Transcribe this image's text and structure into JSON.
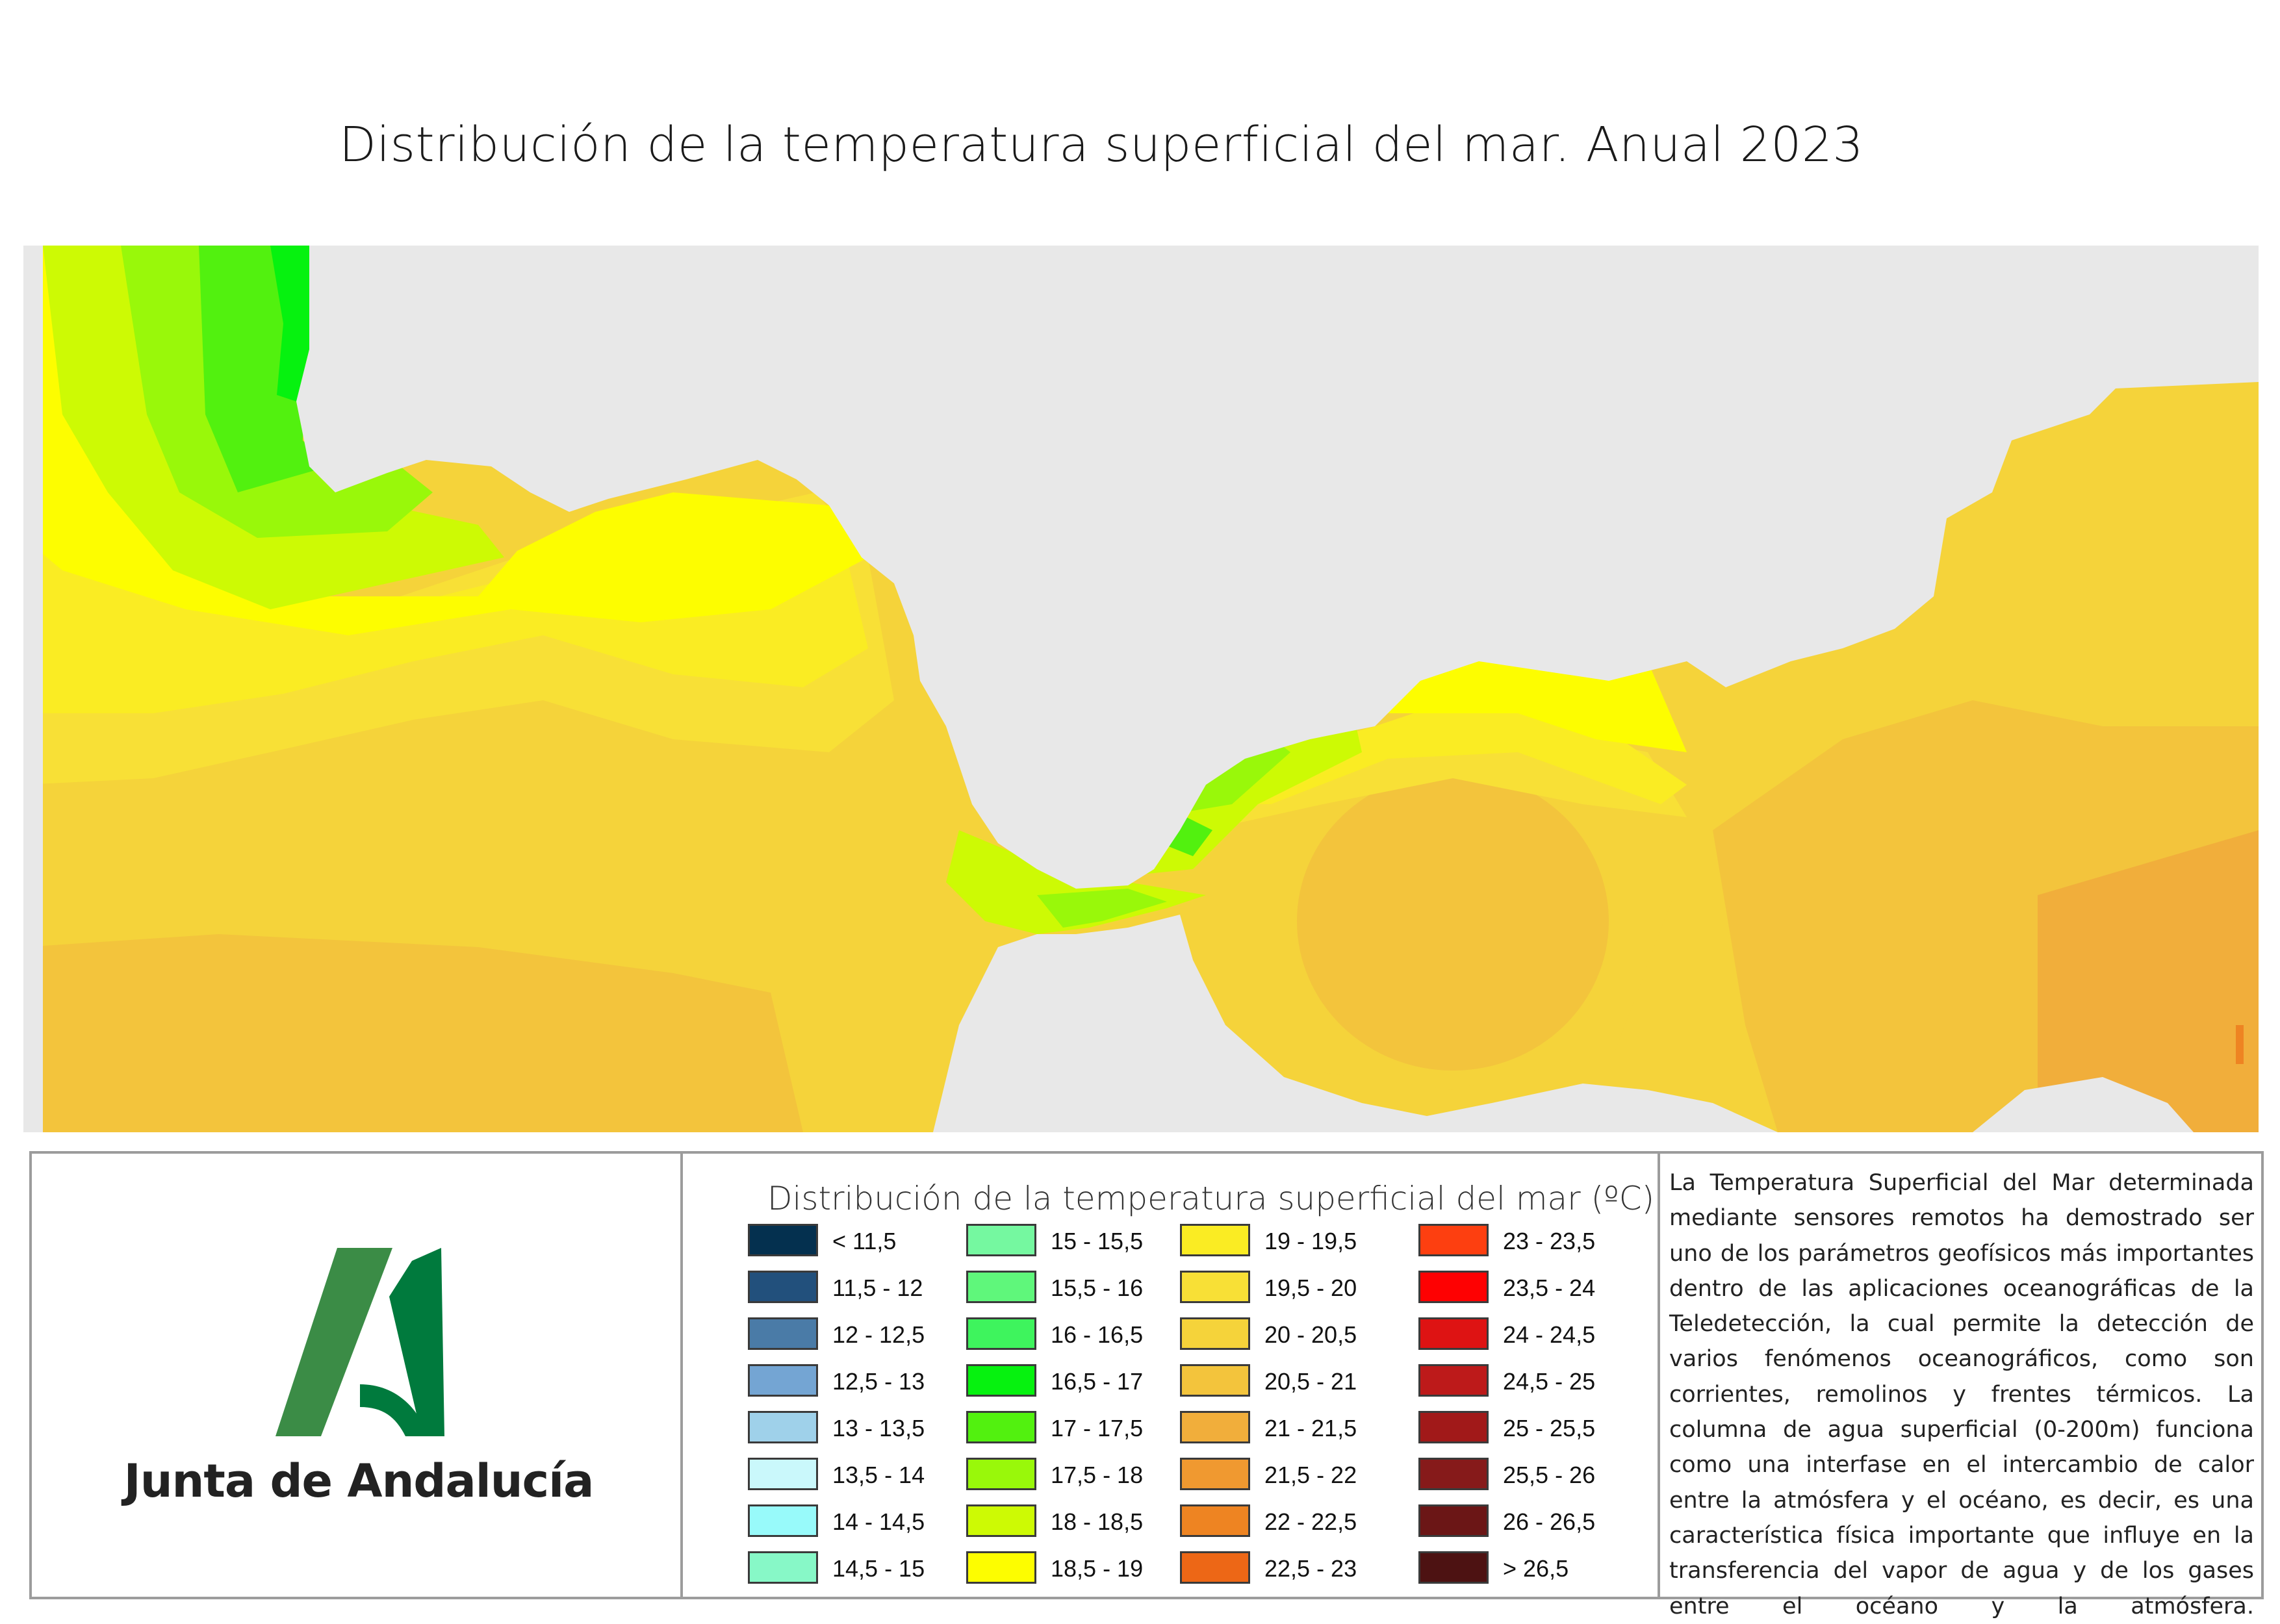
{
  "title": "Distribución de la temperatura superficial del mar. Anual 2023",
  "logo": {
    "text": "Junta de Andalucía",
    "colors": {
      "light_green": "#3b8c46",
      "dark_green": "#007a3d"
    }
  },
  "map": {
    "land_color": "#e8e8e8",
    "icon": "sea-temperature-map"
  },
  "legend": {
    "title": "Distribución de la temperatura superficial del mar (ºC)",
    "items": [
      {
        "label": "< 11,5",
        "color": "#04304f"
      },
      {
        "label": "11,5 - 12",
        "color": "#22507c"
      },
      {
        "label": "12 - 12,5",
        "color": "#4a7ba7"
      },
      {
        "label": "12,5 - 13",
        "color": "#74a5d3"
      },
      {
        "label": "13 - 13,5",
        "color": "#9fd1ea"
      },
      {
        "label": "13,5 - 14",
        "color": "#caf8fb"
      },
      {
        "label": "14 - 14,5",
        "color": "#98fafa"
      },
      {
        "label": "14,5 - 15",
        "color": "#87f8c7"
      },
      {
        "label": "15 - 15,5",
        "color": "#75f8a0"
      },
      {
        "label": "15,5 - 16",
        "color": "#5ff77b"
      },
      {
        "label": "16 - 16,5",
        "color": "#3ef45d"
      },
      {
        "label": "16,5 - 17",
        "color": "#06f20f"
      },
      {
        "label": "17 - 17,5",
        "color": "#52f10f"
      },
      {
        "label": "17,5 - 18",
        "color": "#99f80a"
      },
      {
        "label": "18 - 18,5",
        "color": "#cdfa04"
      },
      {
        "label": "18,5 - 19",
        "color": "#fdfd00"
      },
      {
        "label": "19 - 19,5",
        "color": "#faec23"
      },
      {
        "label": "19,5 - 20",
        "color": "#f8e036"
      },
      {
        "label": "20 - 20,5",
        "color": "#f5d33a"
      },
      {
        "label": "20,5 - 21",
        "color": "#f3c43c"
      },
      {
        "label": "21 - 21,5",
        "color": "#f1ae3b"
      },
      {
        "label": "21,5 - 22",
        "color": "#f09930"
      },
      {
        "label": "22 - 22,5",
        "color": "#ee8422"
      },
      {
        "label": "22,5 - 23",
        "color": "#ed6716"
      },
      {
        "label": "23 - 23,5",
        "color": "#fd3f10"
      },
      {
        "label": "23,5 - 24",
        "color": "#fe0102"
      },
      {
        "label": "24 - 24,5",
        "color": "#de1313"
      },
      {
        "label": "24,5 - 25",
        "color": "#bd1a1a"
      },
      {
        "label": "25 - 25,5",
        "color": "#a11919"
      },
      {
        "label": "25,5 - 26",
        "color": "#861a1a"
      },
      {
        "label": "26 - 26,5",
        "color": "#6b1616"
      },
      {
        "label": "> 26,5",
        "color": "#4d1212"
      }
    ]
  },
  "description": "La Temperatura Superficial del Mar determinada mediante sensores remotos ha demostrado ser uno de los parámetros geofísicos más importantes dentro de las aplicaciones oceanográficas de la Teledetección, la cual permite la detección de varios fenómenos oceanográficos, como son corrientes, remolinos y frentes térmicos. La columna de agua superficial (0-200m) funciona como una interfase en el intercambio de calor entre la atmósfera y el océano, es decir, es una característica física importante que influye en la transferencia del vapor de agua y de los gases entre el océano y la atmósfera."
}
